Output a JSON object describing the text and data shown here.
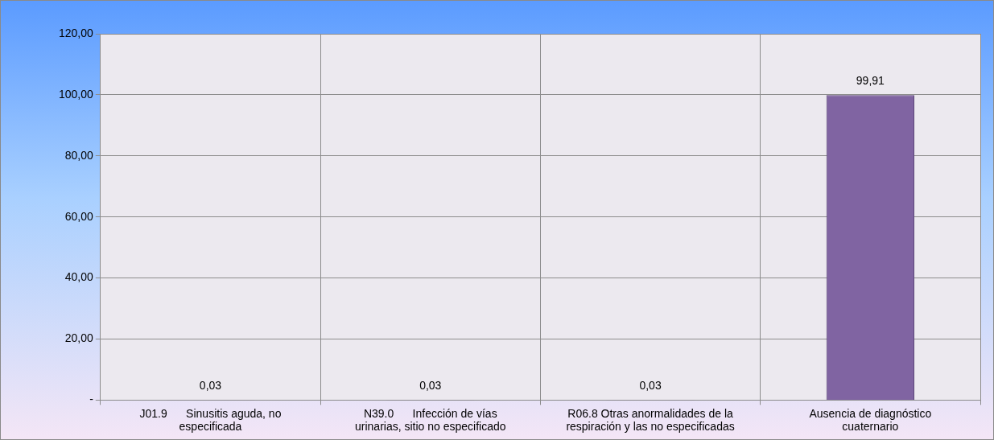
{
  "chart_data": {
    "type": "bar",
    "categories": [
      "J01.9      Sinusitis aguda, no especificada",
      "N39.0      Infección de vías urinarias, sitio no especificado",
      "R06.8 Otras anormalidades de la respiración y las no especificadas",
      "Ausencia de diagnóstico cuaternario"
    ],
    "values": [
      0.03,
      0.03,
      0.03,
      99.91
    ],
    "color": "#8064a2",
    "ylim": [
      0,
      120
    ],
    "yticks": [
      {
        "value": 0,
        "label": "-"
      },
      {
        "value": 20,
        "label": "20,00"
      },
      {
        "value": 40,
        "label": "40,00"
      },
      {
        "value": 60,
        "label": "60,00"
      },
      {
        "value": 80,
        "label": "80,00"
      },
      {
        "value": 100,
        "label": "100,00"
      },
      {
        "value": 120,
        "label": "120,00"
      }
    ],
    "grid": true,
    "value_labels": [
      "0,03",
      "0,03",
      "0,03",
      "99,91"
    ]
  }
}
